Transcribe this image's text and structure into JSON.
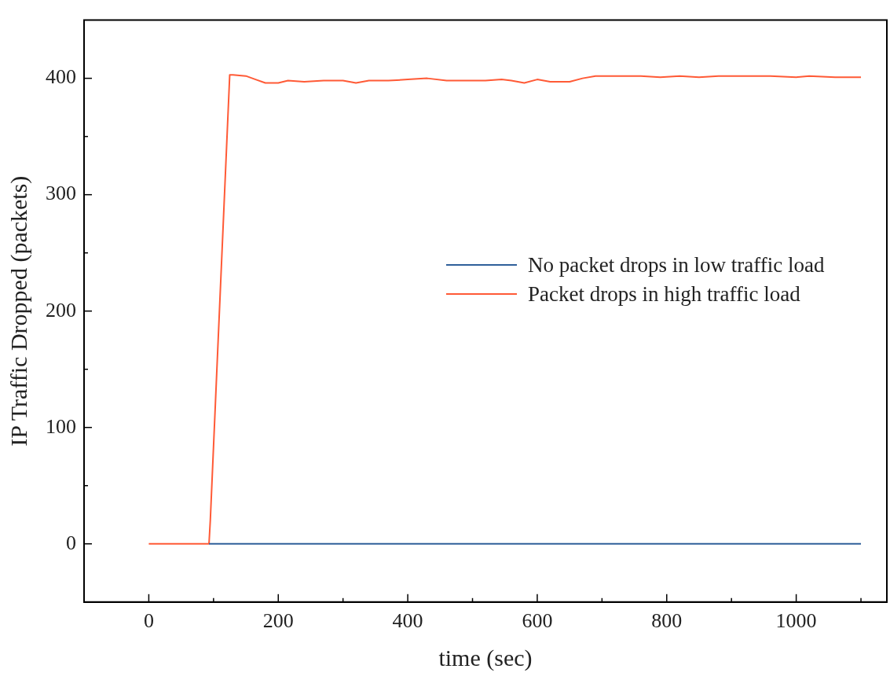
{
  "chart_data": {
    "type": "line",
    "xlabel": "time (sec)",
    "ylabel": "IP Traffic Dropped (packets)",
    "xlim": [
      -100,
      1140
    ],
    "ylim": [
      -50,
      450
    ],
    "xticks": [
      0,
      {
        "value": 100,
        "label": null
      },
      200,
      {
        "value": 300,
        "label": null
      },
      400,
      {
        "value": 500,
        "label": null
      },
      600,
      {
        "value": 700,
        "label": null
      },
      800,
      {
        "value": 900,
        "label": null
      },
      1000,
      {
        "value": 1100,
        "label": null
      }
    ],
    "yticks": [
      0,
      {
        "value": 50,
        "label": null
      },
      100,
      {
        "value": 150,
        "label": null
      },
      200,
      {
        "value": 250,
        "label": null
      },
      300,
      {
        "value": 350,
        "label": null
      },
      400
    ],
    "grid": false,
    "legend": "right",
    "marker": "none",
    "line_style": "solid",
    "series": [
      {
        "name": "No packet drops in low traffic load",
        "color": "#2f5f9a",
        "x": [
          93,
          1100
        ],
        "values": [
          0,
          0
        ]
      },
      {
        "name": "Packet drops in high traffic load",
        "color": "#ff5a36",
        "x": [
          0,
          93,
          95,
          125,
          130,
          150,
          165,
          180,
          200,
          215,
          240,
          270,
          300,
          320,
          340,
          370,
          400,
          430,
          460,
          490,
          520,
          545,
          560,
          580,
          600,
          620,
          650,
          670,
          690,
          720,
          760,
          790,
          820,
          850,
          880,
          920,
          960,
          1000,
          1020,
          1060,
          1100
        ],
        "values": [
          0,
          0,
          20,
          403,
          403,
          402,
          399,
          396,
          396,
          398,
          397,
          398,
          398,
          396,
          398,
          398,
          399,
          400,
          398,
          398,
          398,
          399,
          398,
          396,
          399,
          397,
          397,
          400,
          402,
          402,
          402,
          401,
          402,
          401,
          402,
          402,
          402,
          401,
          402,
          401,
          401
        ]
      }
    ]
  }
}
